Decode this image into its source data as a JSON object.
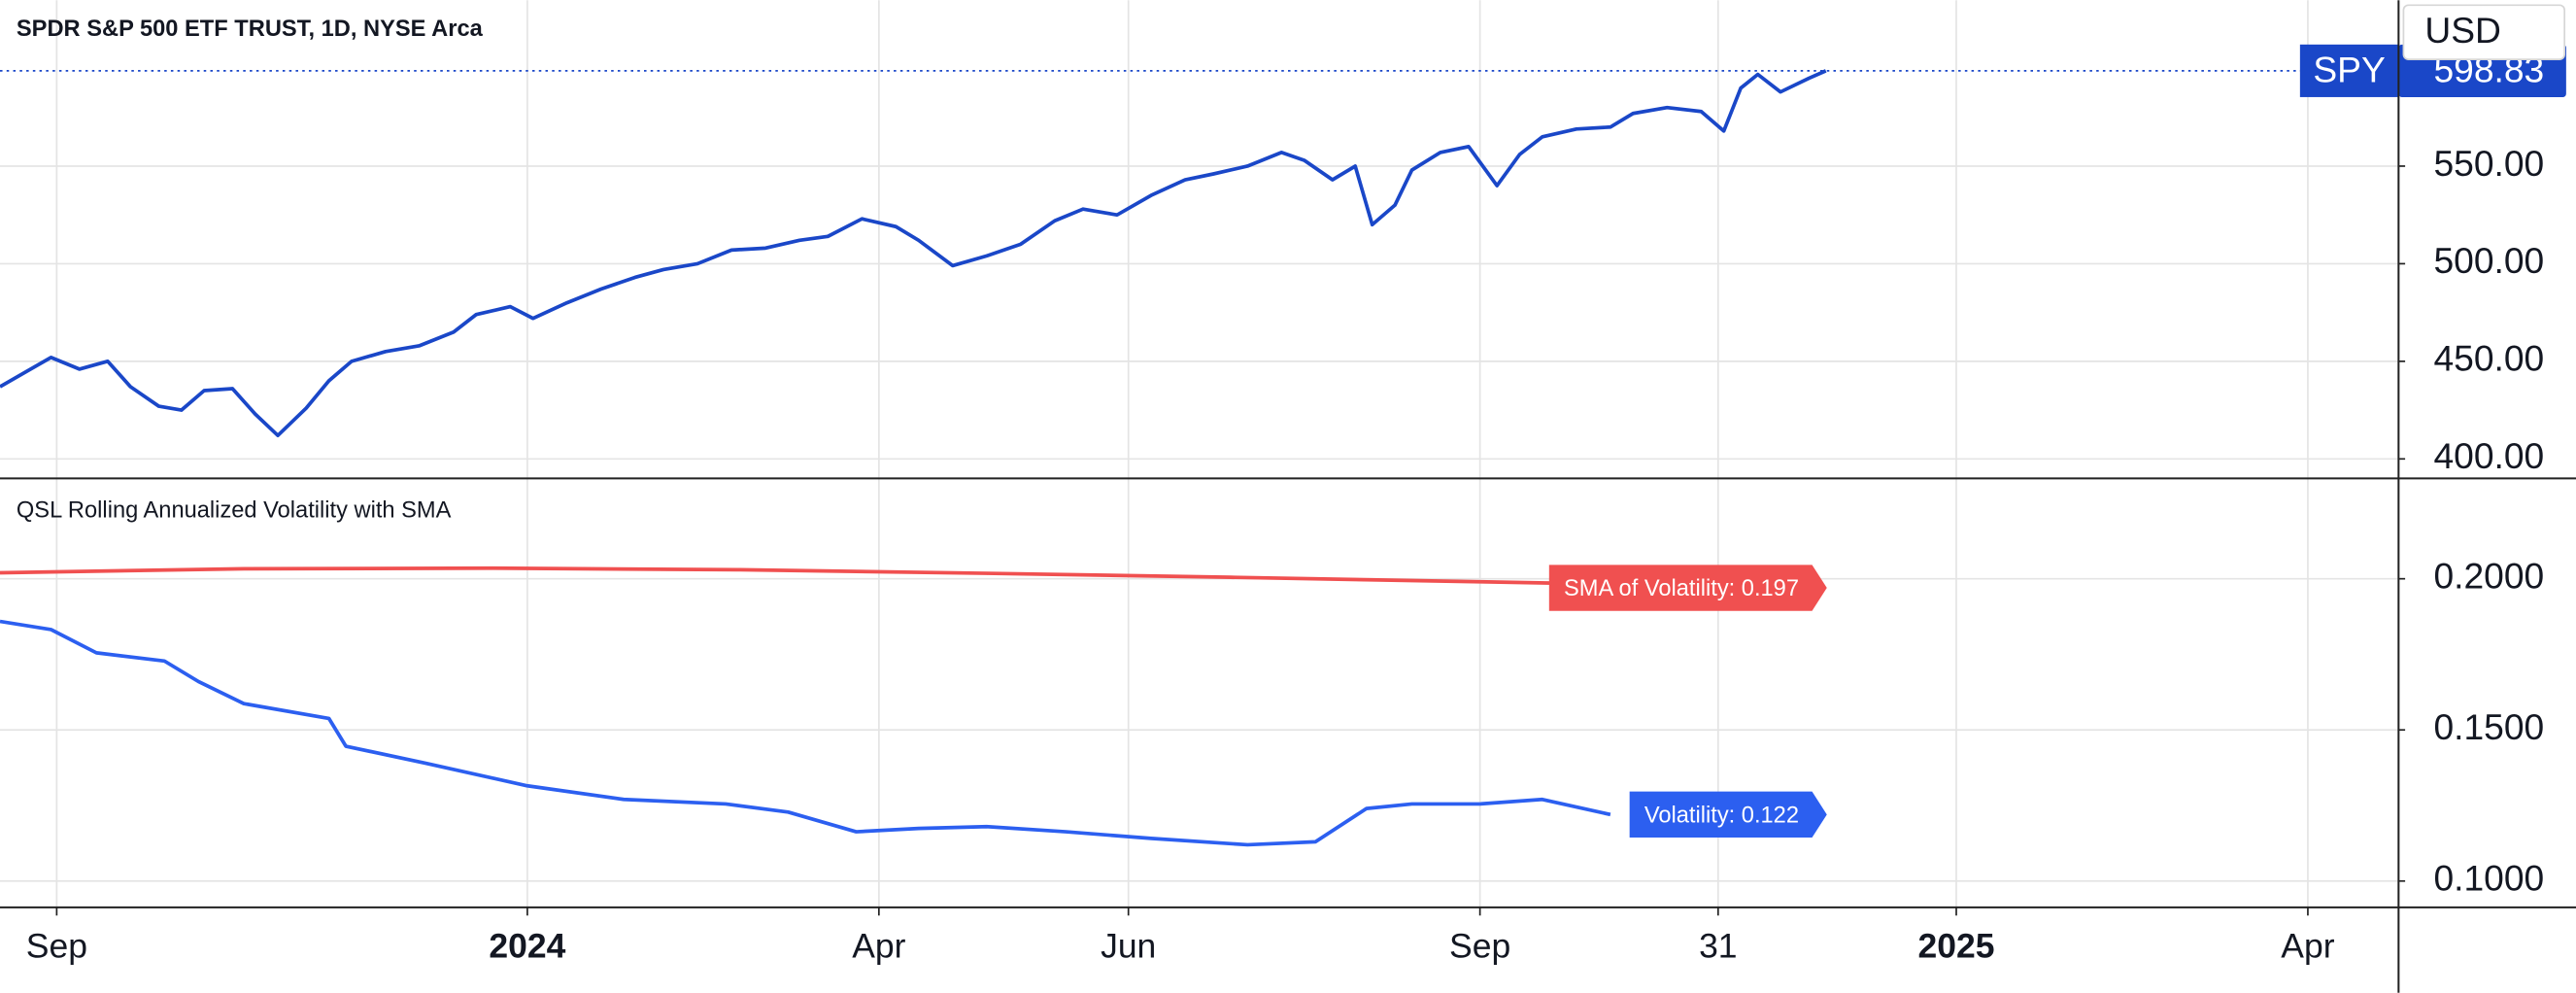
{
  "chart_data": [
    {
      "type": "line",
      "title": "SPDR S&P 500 ETF TRUST, 1D, NYSE Arca",
      "currency": "USD",
      "grid": true,
      "xlim": [
        0,
        423
      ],
      "ylim": [
        390,
        635
      ],
      "yticks": [
        {
          "value": 400,
          "label": "400.00"
        },
        {
          "value": 450,
          "label": "450.00"
        },
        {
          "value": 500,
          "label": "500.00"
        },
        {
          "value": 550,
          "label": "550.00"
        }
      ],
      "series": [
        {
          "name": "SPY",
          "color": "#1a47c8",
          "x": [
            0,
            9,
            14,
            19,
            23,
            28,
            32,
            36,
            41,
            45,
            49,
            54,
            58,
            62,
            68,
            74,
            80,
            84,
            90,
            94,
            100,
            106,
            112,
            117,
            123,
            129,
            135,
            141,
            146,
            152,
            158,
            162,
            168,
            174,
            180,
            186,
            191,
            197,
            203,
            209,
            214,
            220,
            226,
            230,
            235,
            239,
            242,
            246,
            249,
            254,
            259,
            264,
            268,
            272,
            278,
            284,
            288,
            294,
            300,
            304,
            307,
            310,
            314,
            319,
            322
          ],
          "values": [
            437,
            452,
            446,
            450,
            437,
            427,
            425,
            435,
            436,
            423,
            412,
            426,
            440,
            450,
            455,
            458,
            465,
            474,
            478,
            472,
            480,
            487,
            493,
            497,
            500,
            507,
            508,
            512,
            514,
            523,
            519,
            512,
            499,
            504,
            510,
            522,
            528,
            525,
            535,
            543,
            546,
            550,
            557,
            553,
            543,
            550,
            520,
            530,
            548,
            557,
            560,
            540,
            556,
            565,
            569,
            570,
            577,
            580,
            578,
            568,
            590,
            597,
            588,
            595,
            598.83
          ],
          "value_labels": [
            null,
            null,
            null,
            null,
            null,
            null,
            null,
            null,
            null,
            null,
            null,
            null,
            null,
            null,
            null,
            null,
            null,
            null,
            null,
            null,
            null,
            null,
            null,
            null,
            null,
            null,
            null,
            null,
            null,
            null,
            null,
            null,
            null,
            null,
            null,
            null,
            null,
            null,
            null,
            null,
            null,
            null,
            null,
            null,
            null,
            null,
            null,
            null,
            null,
            null,
            null,
            null,
            null,
            null,
            null,
            null,
            null,
            null,
            null,
            null,
            null,
            null,
            null,
            null,
            "598.83"
          ]
        }
      ]
    },
    {
      "type": "line",
      "title": "QSL Rolling Annualized Volatility with SMA",
      "grid": true,
      "xlim": [
        0,
        423
      ],
      "xticks": [
        {
          "value": 10,
          "label": "Sep"
        },
        {
          "value": 93,
          "label": "2024"
        },
        {
          "value": 155,
          "label": "Apr"
        },
        {
          "value": 199,
          "label": "Jun"
        },
        {
          "value": 261,
          "label": "Sep"
        },
        {
          "value": 303,
          "label": "31"
        },
        {
          "value": 345,
          "label": "2025"
        },
        {
          "value": 407,
          "label": "Apr"
        }
      ],
      "ylim": [
        0.0913,
        0.2332
      ],
      "yticks": [
        {
          "value": 0.1,
          "label": "0.1000"
        },
        {
          "value": 0.15,
          "label": "0.1500"
        },
        {
          "value": 0.2,
          "label": "0.2000"
        }
      ],
      "series": [
        {
          "color": "#f05050",
          "x": [
            0,
            43,
            87,
            130,
            174,
            217,
            261,
            319
          ],
          "values": [
            0.202,
            0.2033,
            0.2035,
            0.203,
            0.2018,
            0.2005,
            0.199,
            0.197
          ],
          "value_labels": [
            null,
            null,
            null,
            null,
            null,
            null,
            null,
            "SMA of Volatility: 0.197"
          ]
        },
        {
          "color": "#2c5ff0",
          "x": [
            0,
            9,
            17,
            29,
            35,
            43,
            58,
            61,
            75,
            93,
            110,
            128,
            139,
            151,
            162,
            174,
            188,
            203,
            220,
            232,
            241,
            249,
            261,
            272,
            284
          ],
          "values": [
            0.1859,
            0.1832,
            0.1755,
            0.1728,
            0.166,
            0.1587,
            0.1538,
            0.1446,
            0.139,
            0.1315,
            0.127,
            0.1255,
            0.1228,
            0.1163,
            0.1174,
            0.118,
            0.1163,
            0.1141,
            0.112,
            0.113,
            0.124,
            0.1255,
            0.1255,
            0.127,
            0.122
          ],
          "value_labels": [
            null,
            null,
            null,
            null,
            null,
            null,
            null,
            null,
            null,
            null,
            null,
            null,
            null,
            null,
            null,
            null,
            null,
            null,
            null,
            null,
            null,
            null,
            null,
            null,
            "Volatility: 0.122"
          ]
        }
      ]
    }
  ]
}
